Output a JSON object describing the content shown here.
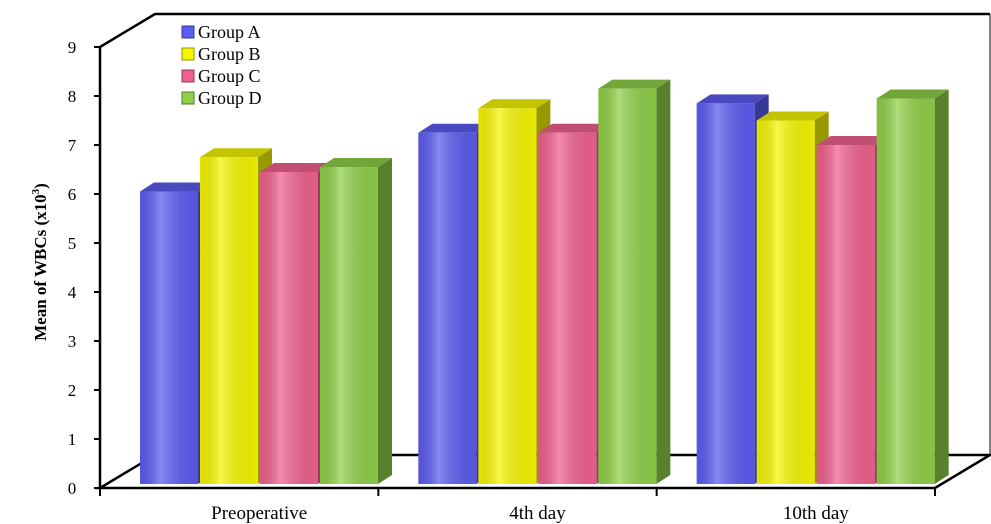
{
  "chart_data": {
    "type": "bar",
    "three_d": true,
    "categories": [
      "Preoperative",
      "4th day",
      "10th day"
    ],
    "series": [
      {
        "name": "Group A",
        "values": [
          6.05,
          7.25,
          7.85
        ],
        "color": "#5b5bf0"
      },
      {
        "name": "Group B",
        "values": [
          6.75,
          7.75,
          7.5
        ],
        "color": "#f5f500"
      },
      {
        "name": "Group C",
        "values": [
          6.45,
          7.25,
          7.0
        ],
        "color": "#f0608e"
      },
      {
        "name": "Group D",
        "values": [
          6.55,
          8.15,
          7.95
        ],
        "color": "#8fd048"
      }
    ],
    "yticks": [
      "0",
      "1",
      "2",
      "3",
      "4",
      "5",
      "6",
      "7",
      "8",
      "9"
    ],
    "ylabel_main": "Mean of WBCs (x10",
    "ylabel_sup": "3",
    "ylabel_end": ")",
    "ylim": [
      0,
      9
    ],
    "legend_position": "top-left",
    "grid": false
  }
}
